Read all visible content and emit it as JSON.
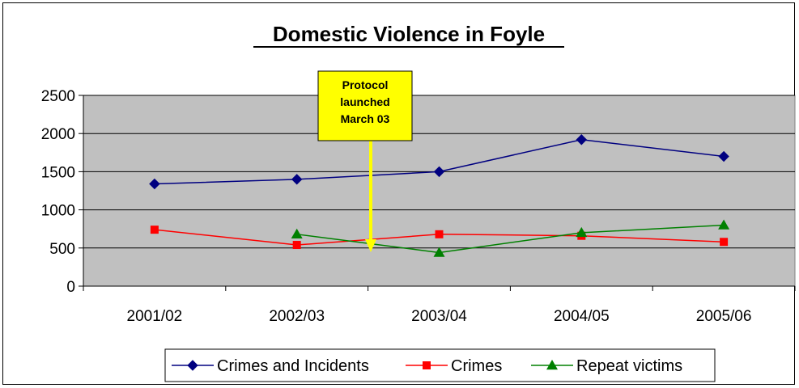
{
  "chart_data": {
    "type": "line",
    "title": "Domestic Violence in Foyle",
    "categories": [
      "2001/02",
      "2002/03",
      "2003/04",
      "2004/05",
      "2005/06"
    ],
    "ylim": [
      0,
      2500
    ],
    "yticks": [
      0,
      500,
      1000,
      1500,
      2000,
      2500
    ],
    "grid": true,
    "legend_position": "bottom",
    "plot_background": "#c0c0c0",
    "series": [
      {
        "name": "Crimes and Incidents",
        "color": "#000080",
        "marker": "diamond",
        "values": [
          1340,
          1400,
          1500,
          1920,
          1700
        ]
      },
      {
        "name": "Crimes",
        "color": "#ff0000",
        "marker": "square",
        "values": [
          740,
          540,
          680,
          660,
          580
        ]
      },
      {
        "name": "Repeat victims",
        "color": "#008000",
        "marker": "triangle",
        "values": [
          null,
          680,
          440,
          700,
          800
        ]
      }
    ],
    "annotation": {
      "lines": [
        "Protocol",
        "launched",
        "March 03"
      ],
      "box_color": "#ffff00",
      "arrow_color": "#ffff00"
    }
  }
}
